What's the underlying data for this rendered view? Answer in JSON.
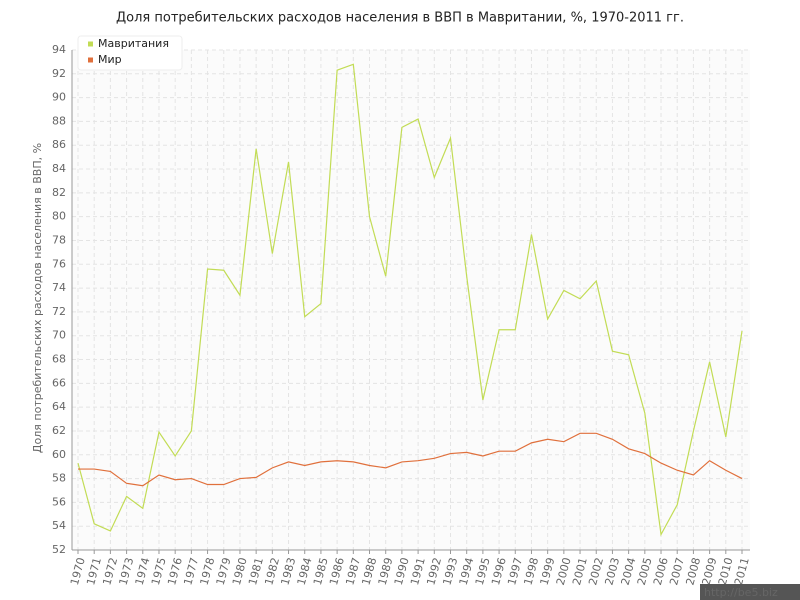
{
  "chart_data": {
    "type": "line",
    "title": "Доля потребительских расходов населения в ВВП в Мавритании, %, 1970-2011 гг.",
    "y_label": "Доля потребительских расходов населения в ВВП, %",
    "watermark": "http://be5.biz",
    "categories": [
      "1970",
      "1971",
      "1972",
      "1973",
      "1974",
      "1975",
      "1976",
      "1977",
      "1978",
      "1979",
      "1980",
      "1981",
      "1982",
      "1983",
      "1984",
      "1985",
      "1986",
      "1987",
      "1988",
      "1989",
      "1990",
      "1991",
      "1992",
      "1993",
      "1994",
      "1995",
      "1996",
      "1997",
      "1998",
      "1999",
      "2000",
      "2001",
      "2002",
      "2003",
      "2004",
      "2005",
      "2006",
      "2007",
      "2008",
      "2009",
      "2010",
      "2011"
    ],
    "series": [
      {
        "name": "Мавритания",
        "color": "#c2dc55",
        "values": [
          59.3,
          54.2,
          53.6,
          56.5,
          55.5,
          61.9,
          59.9,
          62.0,
          75.6,
          75.5,
          73.4,
          85.7,
          76.9,
          84.6,
          71.6,
          72.7,
          92.3,
          92.8,
          80.0,
          75.0,
          87.5,
          88.2,
          83.3,
          86.6,
          75.0,
          64.6,
          70.5,
          70.5,
          78.5,
          71.4,
          73.8,
          73.1,
          74.6,
          68.7,
          68.4,
          63.5,
          53.3,
          55.8,
          62.0,
          67.8,
          61.5,
          70.4
        ]
      },
      {
        "name": "Мир",
        "color": "#e0703c",
        "values": [
          58.8,
          58.8,
          58.6,
          57.6,
          57.4,
          58.3,
          57.9,
          58.0,
          57.5,
          57.5,
          58.0,
          58.1,
          58.9,
          59.4,
          59.1,
          59.4,
          59.5,
          59.4,
          59.1,
          58.9,
          59.4,
          59.5,
          59.7,
          60.1,
          60.2,
          59.9,
          60.3,
          60.3,
          61.0,
          61.3,
          61.1,
          61.8,
          61.8,
          61.3,
          60.5,
          60.1,
          59.3,
          58.7,
          58.3,
          59.5,
          58.7,
          58.0
        ]
      }
    ],
    "ylim": [
      52,
      94
    ],
    "yticks": [
      52,
      54,
      56,
      58,
      60,
      62,
      64,
      66,
      68,
      70,
      72,
      74,
      76,
      78,
      80,
      82,
      84,
      86,
      88,
      90,
      92,
      94
    ],
    "grid": true,
    "legend": "top-left"
  }
}
